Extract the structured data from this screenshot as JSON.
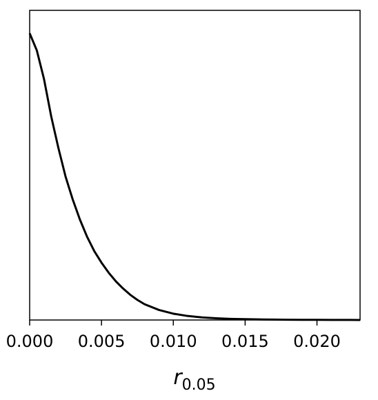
{
  "chart_data": {
    "type": "line",
    "title": "",
    "xlabel": "r",
    "xlabel_subscript": "0.05",
    "ylabel": "",
    "xlim": [
      0.0,
      0.023
    ],
    "ylim": [
      0.0,
      1.08
    ],
    "x_ticks": [
      0.0,
      0.005,
      0.01,
      0.015,
      0.02
    ],
    "x_tick_labels": [
      "0.000",
      "0.005",
      "0.010",
      "0.015",
      "0.020"
    ],
    "y_ticks_shown": false,
    "grid": false,
    "legend": "none",
    "line_color": "#000000",
    "series": [
      {
        "x": [
          0.0,
          0.0005,
          0.001,
          0.0015,
          0.002,
          0.0025,
          0.003,
          0.0035,
          0.004,
          0.0045,
          0.005,
          0.0055,
          0.006,
          0.0065,
          0.007,
          0.0075,
          0.008,
          0.009,
          0.01,
          0.011,
          0.012,
          0.013,
          0.014,
          0.015,
          0.016,
          0.017,
          0.018,
          0.019,
          0.02,
          0.021,
          0.022,
          0.023
        ],
        "y": [
          1.0,
          0.94,
          0.84,
          0.71,
          0.6,
          0.5,
          0.42,
          0.35,
          0.29,
          0.24,
          0.2,
          0.165,
          0.135,
          0.11,
          0.088,
          0.07,
          0.055,
          0.035,
          0.022,
          0.014,
          0.009,
          0.006,
          0.004,
          0.003,
          0.002,
          0.0015,
          0.001,
          0.0007,
          0.0005,
          0.0003,
          0.0002,
          0.0001
        ]
      }
    ]
  }
}
